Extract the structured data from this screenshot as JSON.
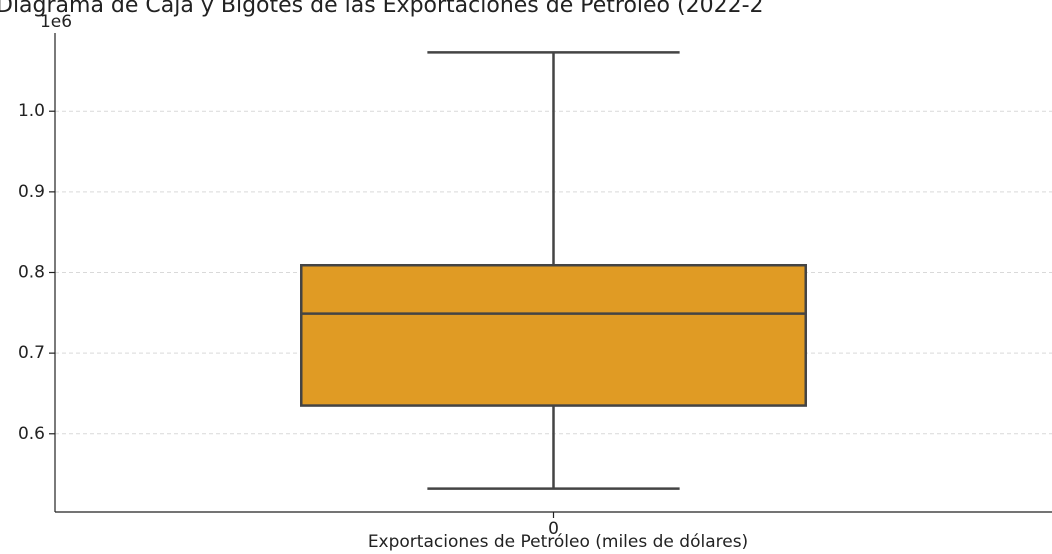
{
  "chart_data": {
    "type": "box",
    "title": "Diagrama de Caja y Bigotes de las Exportaciones de Petróleo (2022-2",
    "xlabel": "Exportaciones de Petróleo (miles de dólares)",
    "offset_label": "1e6",
    "categories": [
      "0"
    ],
    "boxes": [
      {
        "min": 532000,
        "q1": 635000,
        "median": 749000,
        "q3": 809000,
        "max": 1073000
      }
    ],
    "color": "#e09b24",
    "ylim": [
      503000,
      1097000
    ],
    "yticks": [
      {
        "value": 600000,
        "label": "0.6"
      },
      {
        "value": 700000,
        "label": "0.7"
      },
      {
        "value": 800000,
        "label": "0.8"
      },
      {
        "value": 900000,
        "label": "0.9"
      },
      {
        "value": 1000000,
        "label": "1.0"
      }
    ],
    "grid": true
  }
}
